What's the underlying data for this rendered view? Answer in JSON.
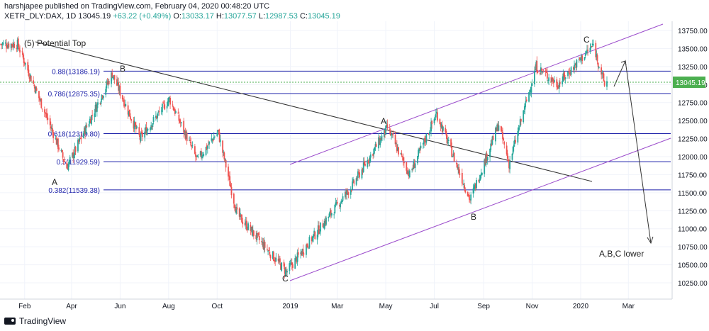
{
  "header": {
    "line1": "harshjapee published on TradingView.com, February 04, 2020 00:48:20 UTC",
    "symbol": "XETR_DLY:DAX, 1D",
    "last": "13045.19",
    "change": "+63.22 (+0.49%)",
    "o_label": "O:",
    "o_value": "13033.17",
    "h_label": "H:",
    "h_value": "13077.57",
    "l_label": "L:",
    "l_value": "12987.53",
    "c_label": "C:",
    "c_value": "13045.19"
  },
  "footer": {
    "brand": "TradingView"
  },
  "colors": {
    "up": "#26a69a",
    "down": "#ef5350",
    "fib": "#1e22aa",
    "channel": "#9c4dcc",
    "trend": "#333333",
    "current": "#4caf50"
  },
  "chart_data": {
    "type": "candlestick",
    "y_ticks": [
      "13750.00",
      "13500.00",
      "13250.00",
      "13000.00",
      "12750.00",
      "12500.00",
      "12250.00",
      "12000.00",
      "11750.00",
      "11500.00",
      "11250.00",
      "11000.00",
      "10750.00",
      "10500.00",
      "10250.00"
    ],
    "ylim": [
      10100,
      13850
    ],
    "x_ticks": [
      "Feb",
      "Apr",
      "Jun",
      "Aug",
      "Oct",
      "2019",
      "Mar",
      "May",
      "Jul",
      "Sep",
      "Nov",
      "2020",
      "Mar"
    ],
    "x_range": [
      "2018-01-01",
      "2020-04-25"
    ],
    "current_price_label": "13045.19",
    "fib_levels": [
      {
        "label": "0.88(13186.19)",
        "value": 13186.19
      },
      {
        "label": "0.786(12875.35)",
        "value": 12875.35
      },
      {
        "label": "0.618(12319.80)",
        "value": 12319.8
      },
      {
        "label": "0.5(11929.59)",
        "value": 11929.59
      },
      {
        "label": "0.382(11539.38)",
        "value": 11539.38
      }
    ],
    "annotations": [
      "(5) Potential Top",
      "B",
      "A",
      "A",
      "C",
      "C",
      "B",
      "A,B,C lower"
    ],
    "anchor_points": [
      {
        "date": "2018-01-23",
        "close": 13560
      },
      {
        "date": "2018-03-26",
        "close": 11850
      },
      {
        "date": "2018-05-22",
        "close": 13150
      },
      {
        "date": "2018-06-26",
        "close": 12250
      },
      {
        "date": "2018-08-02",
        "close": 12800
      },
      {
        "date": "2018-09-06",
        "close": 11950
      },
      {
        "date": "2018-10-02",
        "close": 12350
      },
      {
        "date": "2018-10-26",
        "close": 11200
      },
      {
        "date": "2018-12-27",
        "close": 10400
      },
      {
        "date": "2019-03-20",
        "close": 11600
      },
      {
        "date": "2019-05-03",
        "close": 12400
      },
      {
        "date": "2019-05-31",
        "close": 11750
      },
      {
        "date": "2019-07-04",
        "close": 12600
      },
      {
        "date": "2019-08-15",
        "close": 11400
      },
      {
        "date": "2019-09-20",
        "close": 12450
      },
      {
        "date": "2019-10-03",
        "close": 11900
      },
      {
        "date": "2019-11-06",
        "close": 13250
      },
      {
        "date": "2019-12-03",
        "close": 13000
      },
      {
        "date": "2020-01-17",
        "close": 13550
      },
      {
        "date": "2020-01-31",
        "close": 13000
      },
      {
        "date": "2020-02-03",
        "close": 13045
      }
    ]
  }
}
